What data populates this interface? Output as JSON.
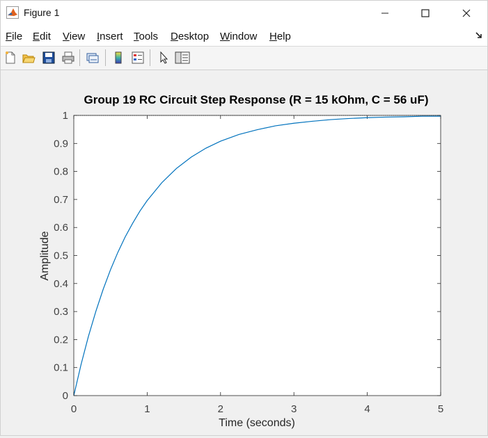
{
  "window": {
    "title": "Figure 1"
  },
  "menu": {
    "items": [
      {
        "label": "File",
        "ul": "F",
        "rest": "ile"
      },
      {
        "label": "Edit",
        "ul": "E",
        "rest": "dit"
      },
      {
        "label": "View",
        "ul": "V",
        "rest": "iew"
      },
      {
        "label": "Insert",
        "ul": "I",
        "rest": "nsert"
      },
      {
        "label": "Tools",
        "ul": "T",
        "rest": "ools"
      },
      {
        "label": "Desktop",
        "ul": "D",
        "rest": "esktop"
      },
      {
        "label": "Window",
        "ul": "W",
        "rest": "indow"
      },
      {
        "label": "Help",
        "ul": "H",
        "rest": "elp"
      }
    ]
  },
  "toolbar": {
    "icons": [
      "new-figure-icon",
      "open-file-icon",
      "save-icon",
      "print-icon",
      "link-plot-icon",
      "colorbar-icon",
      "legend-icon",
      "edit-plot-arrow-icon",
      "property-inspector-icon"
    ]
  },
  "chart_data": {
    "type": "line",
    "title": "Group 19 RC Circuit Step Response (R = 15 kOhm, C = 56 uF)",
    "xlabel": "Time (seconds)",
    "ylabel": "Amplitude",
    "xlim": [
      0,
      5
    ],
    "ylim": [
      0,
      1
    ],
    "xticks": [
      "0",
      "1",
      "2",
      "3",
      "4",
      "5"
    ],
    "yticks": [
      "0",
      "0.1",
      "0.2",
      "0.3",
      "0.4",
      "0.5",
      "0.6",
      "0.7",
      "0.8",
      "0.9",
      "1"
    ],
    "grid": false,
    "line_color": "#0072bd",
    "steady_state_line": {
      "y": 1,
      "style": "dotted",
      "color": "#333333"
    },
    "series": [
      {
        "x": [
          0,
          0.1,
          0.2,
          0.3,
          0.4,
          0.5,
          0.6,
          0.7,
          0.8,
          0.9,
          1.0,
          1.2,
          1.4,
          1.6,
          1.8,
          2.0,
          2.25,
          2.5,
          2.75,
          3.0,
          3.25,
          3.5,
          3.75,
          4.0,
          4.25,
          4.5,
          4.75,
          5.0
        ],
        "values": [
          0,
          0.112,
          0.212,
          0.3,
          0.379,
          0.449,
          0.511,
          0.566,
          0.614,
          0.658,
          0.696,
          0.76,
          0.811,
          0.851,
          0.883,
          0.908,
          0.932,
          0.949,
          0.963,
          0.972,
          0.979,
          0.985,
          0.989,
          0.992,
          0.994,
          0.995,
          0.997,
          0.997
        ]
      }
    ]
  }
}
